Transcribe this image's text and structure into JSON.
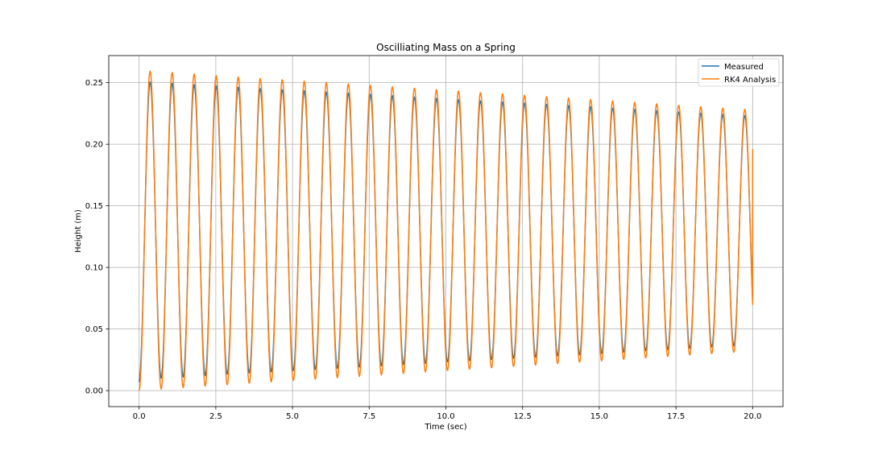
{
  "chart_data": {
    "type": "line",
    "title": "Oscilliating Mass on a Spring",
    "xlabel": "Time (sec)",
    "ylabel": "Height (m)",
    "xlim": [
      -0.99,
      20.99
    ],
    "ylim": [
      -0.013,
      0.272
    ],
    "x_ticks": [
      "0.0",
      "2.5",
      "5.0",
      "7.5",
      "10.0",
      "12.5",
      "15.0",
      "17.5",
      "20.0"
    ],
    "y_ticks": [
      "0.00",
      "0.05",
      "0.10",
      "0.15",
      "0.20",
      "0.25"
    ],
    "grid": true,
    "legend_position": "top-right",
    "colors": {
      "measured": "#1f77b4",
      "rk4": "#ff7f0e"
    },
    "x_range": [
      0,
      20
    ],
    "sample_step": 0.02,
    "series": [
      {
        "name": "Measured",
        "color": "#1f77b4",
        "equilibrium": 0.13,
        "amplitude_start": 0.121,
        "amplitude_end": 0.093,
        "period": 0.718,
        "start_value": 0.007,
        "end_value": 0.15
      },
      {
        "name": "RK4 Analysis",
        "color": "#ff7f0e",
        "equilibrium": 0.13,
        "amplitude_start": 0.13,
        "amplitude_end": 0.098,
        "period": 0.718,
        "start_value": 0.0,
        "end_value": 0.196
      }
    ]
  }
}
